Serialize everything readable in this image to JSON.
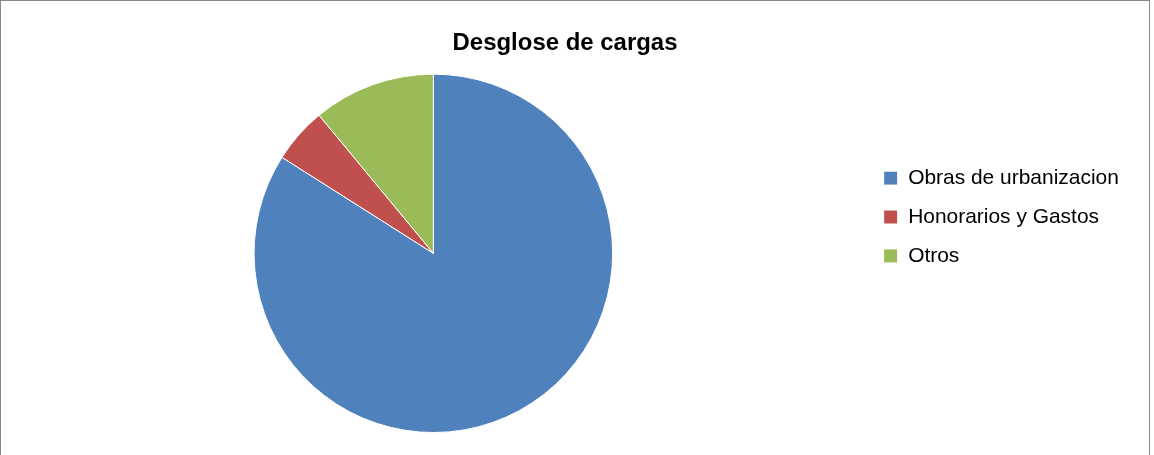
{
  "chart_data": {
    "type": "pie",
    "title": "Desglose de cargas",
    "categories": [
      "Obras de urbanizacion",
      "Honorarios y Gastos",
      "Otros"
    ],
    "values": [
      84,
      5,
      11
    ],
    "colors": [
      "#4f81bd",
      "#c0504d",
      "#9bbb59"
    ],
    "legend": "right"
  }
}
